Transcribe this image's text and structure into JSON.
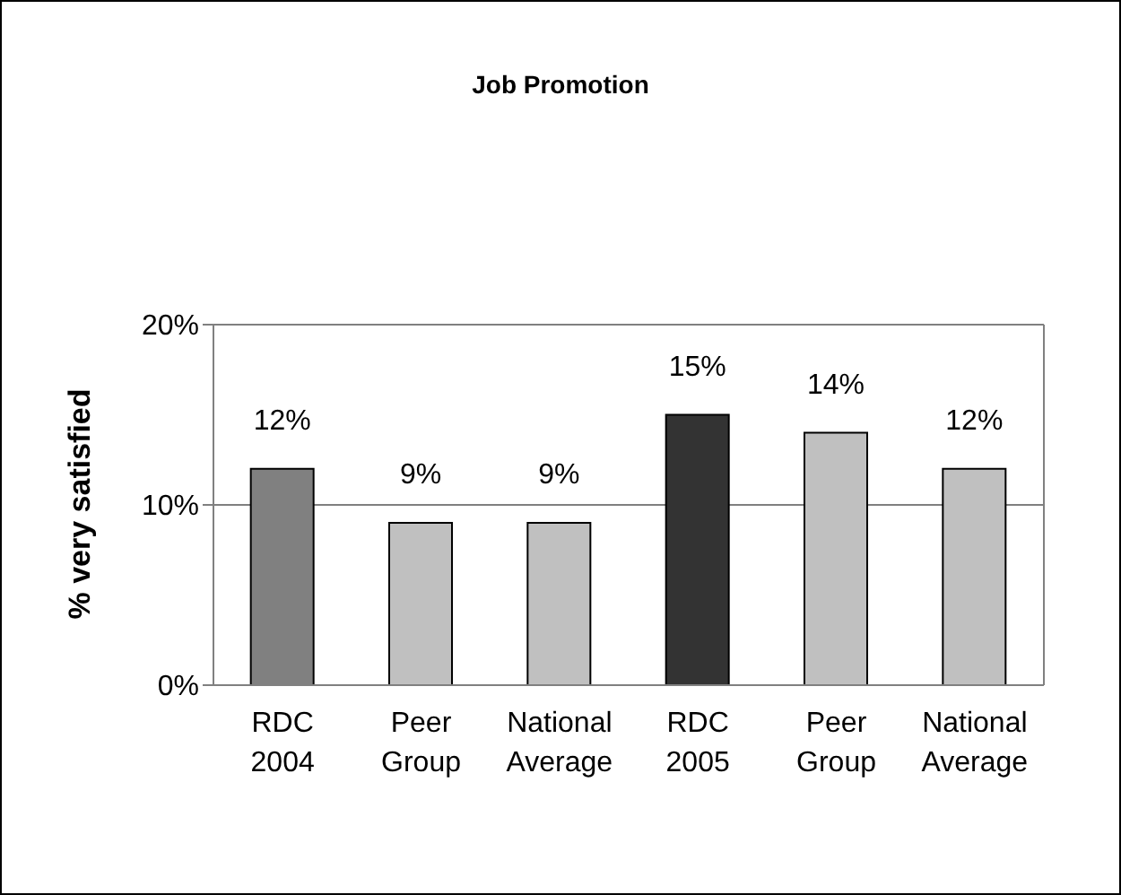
{
  "chart_data": {
    "type": "bar",
    "title": "Job Promotion",
    "ylabel": "% very satisfied",
    "categories": [
      "RDC 2004",
      "Peer Group",
      "National Average",
      "RDC 2005",
      "Peer Group",
      "National Average"
    ],
    "values": [
      12,
      9,
      9,
      15,
      14,
      12
    ],
    "colors": [
      "#808080",
      "#c0c0c0",
      "#c0c0c0",
      "#333333",
      "#c0c0c0",
      "#c0c0c0"
    ],
    "value_labels": [
      "12%",
      "9%",
      "9%",
      "15%",
      "14%",
      "12%"
    ],
    "ylim": [
      0,
      20
    ],
    "yticks": [
      {
        "value": 0,
        "label": "0%"
      },
      {
        "value": 10,
        "label": "10%"
      },
      {
        "value": 20,
        "label": "20%"
      }
    ],
    "grid": "y"
  }
}
